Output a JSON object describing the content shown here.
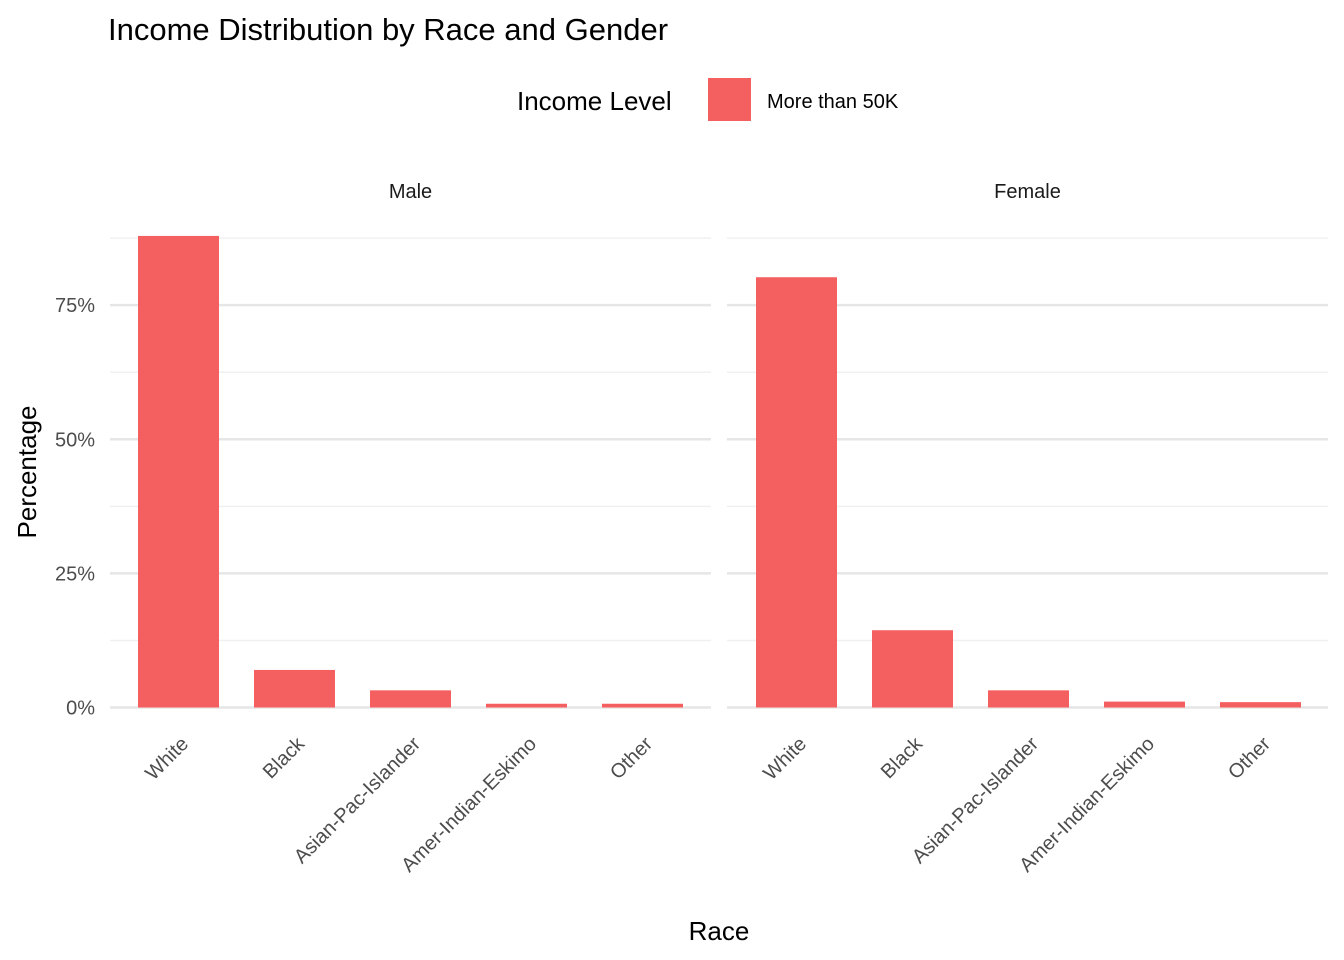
{
  "chart_data": {
    "type": "bar",
    "title": "Income Distribution by Race and Gender",
    "xlabel": "Race",
    "ylabel": "Percentage",
    "legend": {
      "title": "Income Level",
      "entries": [
        "More than 50K"
      ],
      "position": "top"
    },
    "colors": {
      "bar": "#F46060",
      "grid_major": "#e6e6e6",
      "grid_minor": "#f0f0f0"
    },
    "categories": [
      "White",
      "Black",
      "Asian-Pac-Islander",
      "Amer-Indian-Eskimo",
      "Other"
    ],
    "y_ticks": [
      "0%",
      "25%",
      "50%",
      "75%"
    ],
    "ylim": [
      0,
      88
    ],
    "grid": true,
    "facets": [
      {
        "name": "Male",
        "series": [
          {
            "name": "More than 50K",
            "values": [
              87.9,
              7.0,
              3.2,
              0.7,
              0.7
            ]
          }
        ]
      },
      {
        "name": "Female",
        "series": [
          {
            "name": "More than 50K",
            "values": [
              80.2,
              14.4,
              3.2,
              1.1,
              1.0
            ]
          }
        ]
      }
    ]
  }
}
